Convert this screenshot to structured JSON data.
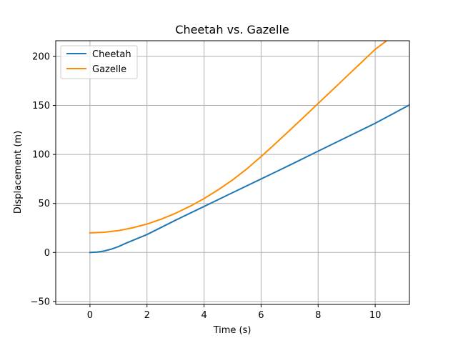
{
  "chart_data": {
    "type": "line",
    "title": "Cheetah vs. Gazelle",
    "xlabel": "Time (s)",
    "ylabel": "Displacement (m)",
    "xlim": [
      -1.2,
      11.2
    ],
    "ylim": [
      -53,
      216
    ],
    "xticks": [
      0,
      2,
      4,
      6,
      8,
      10
    ],
    "yticks": [
      -50,
      0,
      50,
      100,
      150,
      200
    ],
    "grid": true,
    "legend_position": "upper-left",
    "series": [
      {
        "name": "Cheetah",
        "color": "#1f77b4",
        "x": [
          0,
          0.25,
          0.5,
          0.75,
          1.0,
          1.25,
          1.5,
          2,
          3,
          4,
          5,
          6,
          7,
          8,
          9,
          10,
          11.2
        ],
        "y": [
          0,
          0.4,
          1.5,
          3.4,
          6.0,
          9.3,
          12.3,
          18.3,
          32.9,
          46.9,
          61.0,
          75.0,
          89.0,
          103.4,
          117.6,
          131.8,
          150.5
        ]
      },
      {
        "name": "Gazelle",
        "color": "#ff8c00",
        "x": [
          0,
          0.5,
          1,
          1.5,
          2,
          2.5,
          3,
          3.5,
          4,
          4.5,
          5,
          5.5,
          6,
          6.5,
          7,
          7.5,
          8,
          8.5,
          9,
          9.5,
          10,
          10.4
        ],
        "y": [
          20,
          20.6,
          22.3,
          25.2,
          29.0,
          34.0,
          40.0,
          47.0,
          55.0,
          64.0,
          74.0,
          85.3,
          97.8,
          111.0,
          124.5,
          138.2,
          152.0,
          165.8,
          179.6,
          193.4,
          207.2,
          216
        ]
      }
    ]
  }
}
